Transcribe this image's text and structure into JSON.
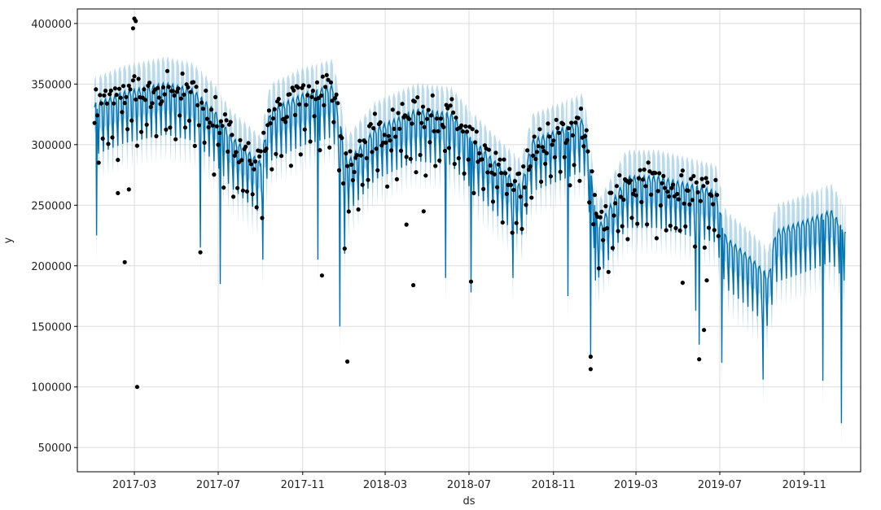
{
  "chart_data": {
    "type": "line",
    "title": "",
    "xlabel": "ds",
    "ylabel": "y",
    "x_range": [
      "2016-12-08",
      "2020-01-22"
    ],
    "ylim": [
      30000,
      412000
    ],
    "grid": true,
    "y_ticks": [
      50000,
      100000,
      150000,
      200000,
      250000,
      300000,
      350000,
      400000
    ],
    "x_ticks": [
      "2017-03",
      "2017-07",
      "2017-11",
      "2018-03",
      "2018-07",
      "2018-11",
      "2019-03",
      "2019-07",
      "2019-11"
    ],
    "colors": {
      "forecast": "#0072B2",
      "interval": "#9ecae1",
      "observed": "#000000",
      "grid": "#dddddd"
    },
    "series": [
      {
        "kind": "forecast_line",
        "start": "2017-01-02",
        "end": "2019-12-31",
        "weekly_trough": 0.6,
        "interval_halfwidth": 22000,
        "trend": [
          {
            "x": "2017-01-02",
            "y": 310000
          },
          {
            "x": "2017-02-15",
            "y": 320000
          },
          {
            "x": "2017-04-15",
            "y": 327000
          },
          {
            "x": "2017-05-25",
            "y": 322000
          },
          {
            "x": "2017-06-25",
            "y": 305000
          },
          {
            "x": "2017-07-20",
            "y": 283000
          },
          {
            "x": "2017-08-31",
            "y": 262000
          },
          {
            "x": "2017-09-15",
            "y": 305000
          },
          {
            "x": "2017-11-01",
            "y": 318000
          },
          {
            "x": "2017-12-15",
            "y": 325000
          },
          {
            "x": "2018-01-05",
            "y": 262000
          },
          {
            "x": "2018-02-15",
            "y": 290000
          },
          {
            "x": "2018-04-15",
            "y": 305000
          },
          {
            "x": "2018-06-05",
            "y": 302000
          },
          {
            "x": "2018-06-30",
            "y": 285000
          },
          {
            "x": "2018-08-15",
            "y": 258000
          },
          {
            "x": "2018-09-15",
            "y": 242000
          },
          {
            "x": "2018-10-01",
            "y": 280000
          },
          {
            "x": "2018-11-15",
            "y": 290000
          },
          {
            "x": "2018-12-15",
            "y": 297000
          },
          {
            "x": "2019-01-05",
            "y": 208000
          },
          {
            "x": "2019-02-15",
            "y": 250000
          },
          {
            "x": "2019-04-01",
            "y": 250000
          },
          {
            "x": "2019-06-25",
            "y": 238000
          },
          {
            "x": "2019-07-10",
            "y": 200000
          },
          {
            "x": "2019-08-15",
            "y": 183000
          },
          {
            "x": "2019-09-10",
            "y": 168000
          },
          {
            "x": "2019-09-20",
            "y": 205000
          },
          {
            "x": "2019-11-10",
            "y": 215000
          },
          {
            "x": "2019-12-10",
            "y": 222000
          },
          {
            "x": "2019-12-31",
            "y": 205000
          }
        ],
        "dips": [
          {
            "x": "2017-01-05",
            "y": 225000
          },
          {
            "x": "2017-06-05",
            "y": 215000
          },
          {
            "x": "2017-07-04",
            "y": 185000
          },
          {
            "x": "2017-09-04",
            "y": 205000
          },
          {
            "x": "2017-11-23",
            "y": 205000
          },
          {
            "x": "2017-12-25",
            "y": 150000
          },
          {
            "x": "2018-01-01",
            "y": 210000
          },
          {
            "x": "2018-05-28",
            "y": 190000
          },
          {
            "x": "2018-07-04",
            "y": 178000
          },
          {
            "x": "2018-09-03",
            "y": 190000
          },
          {
            "x": "2018-11-22",
            "y": 175000
          },
          {
            "x": "2018-12-25",
            "y": 125000
          },
          {
            "x": "2019-01-01",
            "y": 188000
          },
          {
            "x": "2019-05-27",
            "y": 163000
          },
          {
            "x": "2019-06-01",
            "y": 135000
          },
          {
            "x": "2019-07-04",
            "y": 120000
          },
          {
            "x": "2019-09-02",
            "y": 106000
          },
          {
            "x": "2019-11-28",
            "y": 105000
          },
          {
            "x": "2019-12-25",
            "y": 70000
          }
        ]
      },
      {
        "kind": "observed_points",
        "start": "2017-01-02",
        "end": "2019-06-30",
        "every_days": 2,
        "outliers": [
          {
            "x": "2017-03-05",
            "y": 100000
          },
          {
            "x": "2017-02-15",
            "y": 203000
          },
          {
            "x": "2017-03-01",
            "y": 404000
          },
          {
            "x": "2017-03-03",
            "y": 402000
          },
          {
            "x": "2017-02-27",
            "y": 396000
          },
          {
            "x": "2017-02-05",
            "y": 260000
          },
          {
            "x": "2017-02-21",
            "y": 263000
          },
          {
            "x": "2018-01-05",
            "y": 121000
          },
          {
            "x": "2018-04-11",
            "y": 184000
          },
          {
            "x": "2018-04-01",
            "y": 234000
          },
          {
            "x": "2018-04-26",
            "y": 245000
          },
          {
            "x": "2017-11-29",
            "y": 192000
          },
          {
            "x": "2019-05-08",
            "y": 186000
          },
          {
            "x": "2019-06-08",
            "y": 147000
          },
          {
            "x": "2019-06-12",
            "y": 188000
          },
          {
            "x": "2018-12-25",
            "y": 125000
          }
        ]
      }
    ]
  }
}
